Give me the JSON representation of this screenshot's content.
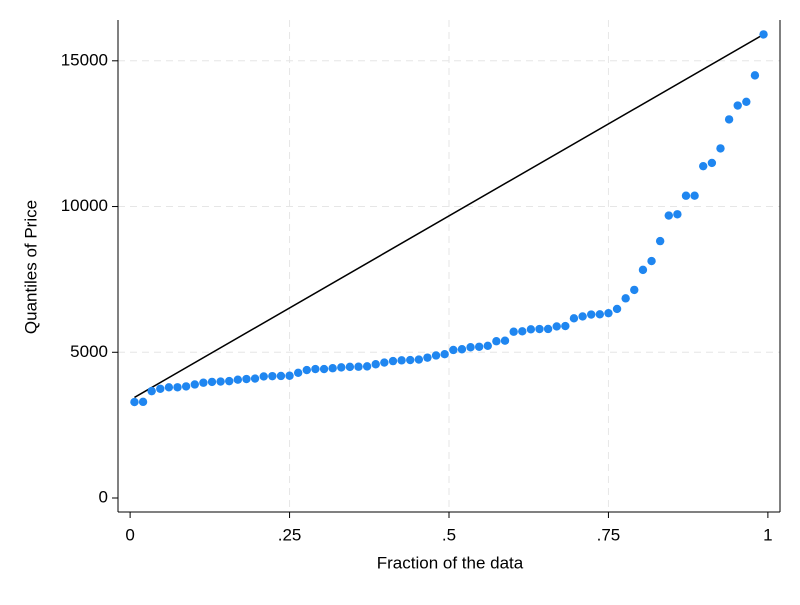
{
  "chart_data": {
    "type": "scatter",
    "x_label": "Fraction of the data",
    "y_label": "Quantiles of Price",
    "series": [
      {
        "color": "#1f86f0",
        "x": [
          0.0068,
          0.0203,
          0.0338,
          0.0473,
          0.0608,
          0.0743,
          0.0878,
          0.1014,
          0.1149,
          0.1284,
          0.1419,
          0.1554,
          0.1689,
          0.1824,
          0.1959,
          0.2095,
          0.223,
          0.2365,
          0.25,
          0.2635,
          0.277,
          0.2905,
          0.3041,
          0.3176,
          0.3311,
          0.3446,
          0.3581,
          0.3716,
          0.3851,
          0.3986,
          0.4122,
          0.4257,
          0.4392,
          0.4527,
          0.4662,
          0.4797,
          0.4932,
          0.5068,
          0.5203,
          0.5338,
          0.5473,
          0.5608,
          0.5743,
          0.5878,
          0.6014,
          0.6149,
          0.6284,
          0.6419,
          0.6554,
          0.6689,
          0.6824,
          0.6959,
          0.7095,
          0.723,
          0.7365,
          0.75,
          0.7635,
          0.777,
          0.7905,
          0.8041,
          0.8176,
          0.8311,
          0.8446,
          0.8581,
          0.8716,
          0.8851,
          0.8986,
          0.9122,
          0.9257,
          0.9392,
          0.9527,
          0.9662,
          0.9797,
          0.9932
        ],
        "values": [
          3291,
          3299,
          3667,
          3748,
          3798,
          3799,
          3829,
          3895,
          3955,
          3984,
          3995,
          4010,
          4060,
          4082,
          4099,
          4172,
          4181,
          4187,
          4195,
          4296,
          4389,
          4424,
          4425,
          4453,
          4482,
          4499,
          4504,
          4516,
          4589,
          4647,
          4697,
          4723,
          4733,
          4749,
          4816,
          4890,
          4934,
          5079,
          5104,
          5172,
          5189,
          5222,
          5379,
          5397,
          5705,
          5719,
          5788,
          5798,
          5799,
          5886,
          5899,
          6165,
          6229,
          6295,
          6303,
          6342,
          6486,
          6850,
          7140,
          7827,
          8129,
          8814,
          9690,
          9735,
          10371,
          10372,
          11385,
          11497,
          11995,
          12990,
          13466,
          13594,
          14500,
          15906
        ]
      }
    ],
    "reference_line": {
      "color": "#000000",
      "x": [
        0.0068,
        0.9932
      ],
      "values": [
        3450,
        15906
      ]
    },
    "xlim": [
      -0.019,
      1.019
    ],
    "ylim": [
      -480,
      16400
    ],
    "xticks": [
      0,
      {
        "value": 0.25,
        "label": ".25"
      },
      {
        "value": 0.5,
        "label": ".5"
      },
      {
        "value": 0.75,
        "label": ".75"
      },
      1
    ],
    "yticks": [
      0,
      5000,
      10000,
      15000
    ],
    "grid": true
  }
}
